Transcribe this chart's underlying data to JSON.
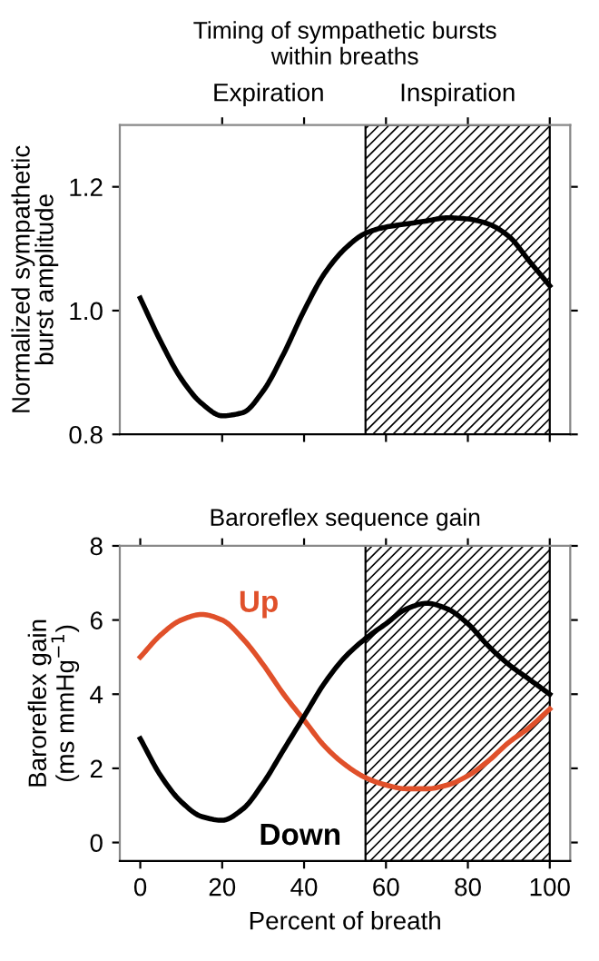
{
  "chart_data": [
    {
      "type": "line",
      "title": "Timing of sympathetic bursts\nwithin breaths",
      "ylabel": "Normalized sympathetic\nburst amplitude",
      "x": [
        0,
        5,
        10,
        15,
        20,
        25,
        30,
        35,
        40,
        45,
        50,
        55,
        60,
        65,
        70,
        75,
        80,
        85,
        90,
        95,
        100
      ],
      "series": [
        {
          "color": "#000000",
          "values": [
            1.02,
            0.95,
            0.89,
            0.85,
            0.83,
            0.835,
            0.87,
            0.93,
            1.0,
            1.06,
            1.1,
            1.125,
            1.135,
            1.14,
            1.145,
            1.15,
            1.148,
            1.14,
            1.12,
            1.08,
            1.04
          ]
        }
      ],
      "xlim": [
        -5,
        105
      ],
      "xticks": [
        20,
        40,
        60,
        80,
        100
      ],
      "ylim": [
        0.8,
        1.3
      ],
      "yticks": [
        0.8,
        {
          "value": 1.0,
          "label": "1.0"
        },
        1.2
      ],
      "tick_labels": "y",
      "bands": [
        {
          "axis": "x",
          "from": 55,
          "to": 100,
          "label": "Inspiration",
          "color": "#000000"
        }
      ],
      "annotations": [
        "Expiration"
      ],
      "grid": false,
      "legend": false,
      "marker": "none",
      "line_style": "solid"
    },
    {
      "type": "line",
      "title": "Baroreflex sequence gain",
      "xlabel": "Percent of breath",
      "ylabel": "Baroreflex gain\n(ms mmHg$^{−1}$)",
      "x": [
        0,
        5,
        10,
        15,
        20,
        25,
        30,
        35,
        40,
        45,
        50,
        55,
        60,
        65,
        70,
        75,
        80,
        85,
        90,
        95,
        100
      ],
      "series": [
        {
          "name": "Up",
          "color": "#e0502a",
          "values": [
            5.0,
            5.6,
            6.0,
            6.15,
            6.0,
            5.5,
            4.8,
            4.0,
            3.3,
            2.6,
            2.1,
            1.75,
            1.55,
            1.45,
            1.45,
            1.55,
            1.8,
            2.2,
            2.7,
            3.1,
            3.6
          ]
        },
        {
          "name": "Down",
          "color": "#000000",
          "values": [
            2.8,
            1.8,
            1.1,
            0.7,
            0.6,
            0.9,
            1.6,
            2.5,
            3.4,
            4.3,
            5.0,
            5.5,
            5.9,
            6.3,
            6.45,
            6.3,
            5.9,
            5.3,
            4.8,
            4.4,
            4.0
          ]
        }
      ],
      "xlim": [
        -5,
        105
      ],
      "xticks": [
        0,
        20,
        40,
        60,
        80,
        100
      ],
      "ylim": [
        -0.5,
        8
      ],
      "yticks": [
        0,
        2,
        4,
        6,
        8
      ],
      "bands": [
        {
          "axis": "x",
          "from": 55,
          "to": 100,
          "color": "#000000"
        }
      ],
      "grid": false,
      "legend": false,
      "marker": "none",
      "line_style": "solid"
    }
  ]
}
